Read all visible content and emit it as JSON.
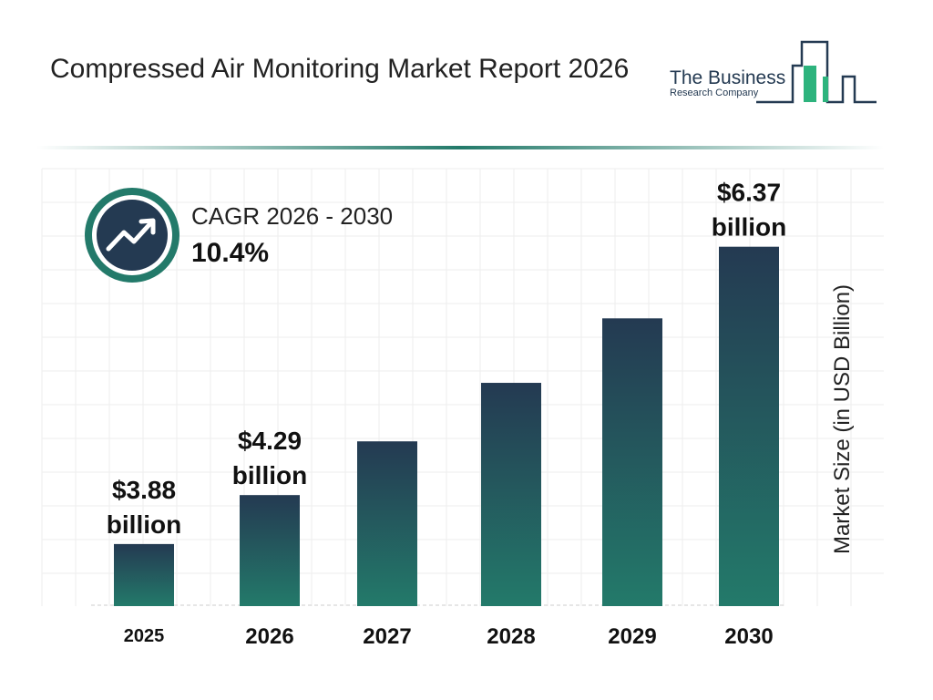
{
  "title": "Compressed Air Monitoring Market Report 2026",
  "logo": {
    "line1": "The Business",
    "line2": "Research Company"
  },
  "cagr": {
    "label": "CAGR 2026 - 2030",
    "value": "10.4%",
    "icon": "trend-up-icon"
  },
  "colors": {
    "bar_top": "#243a52",
    "bar_bottom": "#237a6a",
    "accent": "#237a6a"
  },
  "chart_data": {
    "type": "bar",
    "categories": [
      "2025",
      "2026",
      "2027",
      "2028",
      "2029",
      "2030"
    ],
    "values": [
      3.88,
      4.29,
      4.74,
      5.23,
      5.77,
      6.37
    ],
    "data_labels": [
      [
        "$3.88",
        "billion"
      ],
      [
        "$4.29",
        "billion"
      ],
      null,
      null,
      null,
      [
        "$6.37",
        "billion"
      ]
    ],
    "ylabel": "Market Size (in USD Billion)",
    "xlabel": "",
    "grid": true
  }
}
